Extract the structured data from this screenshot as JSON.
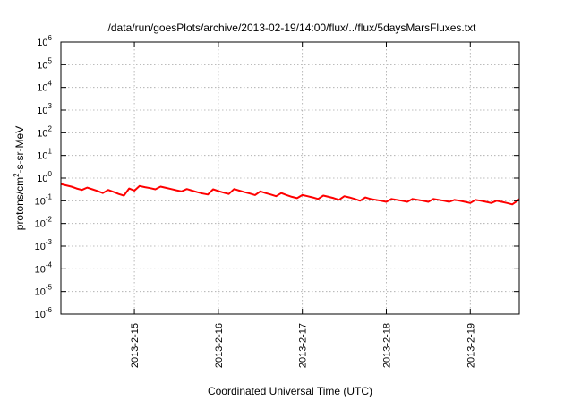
{
  "chart_data": {
    "type": "line",
    "title": "/data/run/goesPlots/archive/2013-02-19/14:00/flux/../flux/5daysMarsFluxes.txt",
    "xlabel": "Coordinated Universal Time (UTC)",
    "ylabel_prefix": "protons/cm",
    "ylabel_sup": "2",
    "ylabel_suffix": "-s-sr-MeV",
    "yscale": "log",
    "ylim": [
      1e-06,
      1000000.0
    ],
    "y_ticks": [
      {
        "base": "10",
        "exp": "-6",
        "value": 1e-06
      },
      {
        "base": "10",
        "exp": "-5",
        "value": 1e-05
      },
      {
        "base": "10",
        "exp": "-4",
        "value": 0.0001
      },
      {
        "base": "10",
        "exp": "-3",
        "value": 0.001
      },
      {
        "base": "10",
        "exp": "-2",
        "value": 0.01
      },
      {
        "base": "10",
        "exp": "-1",
        "value": 0.1
      },
      {
        "base": "10",
        "exp": "0",
        "value": 1
      },
      {
        "base": "10",
        "exp": "1",
        "value": 10
      },
      {
        "base": "10",
        "exp": "2",
        "value": 100
      },
      {
        "base": "10",
        "exp": "3",
        "value": 1000
      },
      {
        "base": "10",
        "exp": "4",
        "value": 10000
      },
      {
        "base": "10",
        "exp": "5",
        "value": 100000
      },
      {
        "base": "10",
        "exp": "6",
        "value": 1000000
      }
    ],
    "xlim": [
      "2013-02-14T03:00",
      "2013-02-19T14:00"
    ],
    "x_ticks": [
      {
        "label": "2013-2-15",
        "value": "2013-02-15T00:00"
      },
      {
        "label": "2013-2-16",
        "value": "2013-02-16T00:00"
      },
      {
        "label": "2013-2-17",
        "value": "2013-02-17T00:00"
      },
      {
        "label": "2013-2-18",
        "value": "2013-02-18T00:00"
      },
      {
        "label": "2013-2-19",
        "value": "2013-02-19T00:00"
      }
    ],
    "grid": true,
    "series": [
      {
        "color": "#ff0000",
        "x": [
          "2013-02-14T03:00",
          "2013-02-14T04:30",
          "2013-02-14T06:00",
          "2013-02-14T07:30",
          "2013-02-14T09:00",
          "2013-02-14T10:30",
          "2013-02-14T12:00",
          "2013-02-14T13:30",
          "2013-02-14T15:00",
          "2013-02-14T16:30",
          "2013-02-14T18:00",
          "2013-02-14T19:30",
          "2013-02-14T21:00",
          "2013-02-14T22:30",
          "2013-02-15T00:00",
          "2013-02-15T01:30",
          "2013-02-15T03:00",
          "2013-02-15T04:30",
          "2013-02-15T06:00",
          "2013-02-15T07:30",
          "2013-02-15T09:00",
          "2013-02-15T10:30",
          "2013-02-15T12:00",
          "2013-02-15T13:30",
          "2013-02-15T15:00",
          "2013-02-15T16:30",
          "2013-02-15T18:00",
          "2013-02-15T19:30",
          "2013-02-15T21:00",
          "2013-02-15T22:30",
          "2013-02-16T00:00",
          "2013-02-16T01:30",
          "2013-02-16T03:00",
          "2013-02-16T04:30",
          "2013-02-16T06:00",
          "2013-02-16T07:30",
          "2013-02-16T09:00",
          "2013-02-16T10:30",
          "2013-02-16T12:00",
          "2013-02-16T13:30",
          "2013-02-16T15:00",
          "2013-02-16T16:30",
          "2013-02-16T18:00",
          "2013-02-16T19:30",
          "2013-02-16T21:00",
          "2013-02-16T22:30",
          "2013-02-17T00:00",
          "2013-02-17T01:30",
          "2013-02-17T03:00",
          "2013-02-17T04:30",
          "2013-02-17T06:00",
          "2013-02-17T07:30",
          "2013-02-17T09:00",
          "2013-02-17T10:30",
          "2013-02-17T12:00",
          "2013-02-17T13:30",
          "2013-02-17T15:00",
          "2013-02-17T16:30",
          "2013-02-17T18:00",
          "2013-02-17T19:30",
          "2013-02-17T21:00",
          "2013-02-17T22:30",
          "2013-02-18T00:00",
          "2013-02-18T01:30",
          "2013-02-18T03:00",
          "2013-02-18T04:30",
          "2013-02-18T06:00",
          "2013-02-18T07:30",
          "2013-02-18T09:00",
          "2013-02-18T10:30",
          "2013-02-18T12:00",
          "2013-02-18T13:30",
          "2013-02-18T15:00",
          "2013-02-18T16:30",
          "2013-02-18T18:00",
          "2013-02-18T19:30",
          "2013-02-18T21:00",
          "2013-02-18T22:30",
          "2013-02-19T00:00",
          "2013-02-19T01:30",
          "2013-02-19T03:00",
          "2013-02-19T04:30",
          "2013-02-19T06:00",
          "2013-02-19T07:30",
          "2013-02-19T09:00",
          "2013-02-19T10:30",
          "2013-02-19T12:00",
          "2013-02-19T13:30",
          "2013-02-19T14:00"
        ],
        "y": [
          0.55,
          0.48,
          0.42,
          0.35,
          0.3,
          0.38,
          0.32,
          0.27,
          0.22,
          0.3,
          0.25,
          0.2,
          0.17,
          0.35,
          0.28,
          0.45,
          0.4,
          0.36,
          0.32,
          0.42,
          0.37,
          0.33,
          0.29,
          0.26,
          0.33,
          0.28,
          0.24,
          0.21,
          0.19,
          0.32,
          0.27,
          0.23,
          0.2,
          0.33,
          0.28,
          0.24,
          0.21,
          0.18,
          0.26,
          0.22,
          0.19,
          0.16,
          0.22,
          0.18,
          0.15,
          0.13,
          0.18,
          0.16,
          0.14,
          0.12,
          0.17,
          0.15,
          0.13,
          0.11,
          0.16,
          0.14,
          0.12,
          0.1,
          0.14,
          0.12,
          0.11,
          0.1,
          0.09,
          0.12,
          0.11,
          0.1,
          0.09,
          0.12,
          0.11,
          0.1,
          0.09,
          0.12,
          0.11,
          0.1,
          0.09,
          0.11,
          0.1,
          0.09,
          0.08,
          0.11,
          0.1,
          0.09,
          0.08,
          0.1,
          0.09,
          0.08,
          0.07,
          0.1,
          0.12
        ]
      }
    ]
  }
}
